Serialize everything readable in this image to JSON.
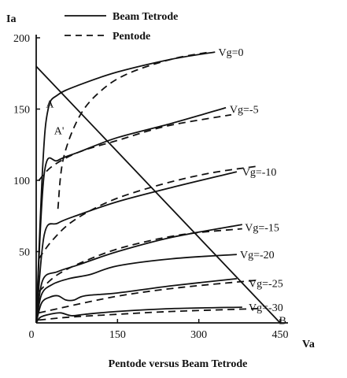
{
  "chart_data": {
    "type": "line",
    "title": "",
    "caption": "Pentode versus Beam Tetrode",
    "xlabel": "Va",
    "ylabel": "Ia",
    "xlim": [
      0,
      450
    ],
    "ylim": [
      0,
      200
    ],
    "x_ticks": [
      "0",
      "150",
      "300",
      "450"
    ],
    "y_ticks": [
      "50",
      "100",
      "150",
      "200"
    ],
    "grid": false,
    "legend": {
      "placement": "top",
      "entries": [
        {
          "label": "Beam Tetrode",
          "style": "solid"
        },
        {
          "label": "Pentode",
          "style": "dashed"
        }
      ]
    },
    "series": [
      {
        "group": "Beam Tetrode",
        "vg": "Vg=0",
        "x": [
          0,
          12,
          22,
          40,
          80,
          150,
          250,
          330
        ],
        "y": [
          0,
          110,
          150,
          160,
          167,
          176,
          185,
          190
        ]
      },
      {
        "group": "Beam Tetrode",
        "vg": "Vg=-5",
        "x": [
          0,
          15,
          40,
          80,
          150,
          250,
          350
        ],
        "y": [
          0,
          105,
          114,
          120,
          130,
          140,
          151
        ]
      },
      {
        "group": "Beam Tetrode",
        "vg": "Vg=-10",
        "x": [
          0,
          15,
          40,
          80,
          150,
          250,
          370
        ],
        "y": [
          0,
          62,
          70,
          76,
          85,
          95,
          106
        ]
      },
      {
        "group": "Beam Tetrode",
        "vg": "Vg=-15",
        "x": [
          0,
          12,
          40,
          80,
          150,
          250,
          380
        ],
        "y": [
          0,
          30,
          36,
          41,
          50,
          60,
          69
        ]
      },
      {
        "group": "Beam Tetrode",
        "vg": "Vg=-20",
        "x": [
          0,
          10,
          30,
          60,
          100,
          150,
          250,
          370
        ],
        "y": [
          0,
          20,
          27,
          31,
          34,
          40,
          45,
          48
        ]
      },
      {
        "group": "Beam Tetrode",
        "vg": "Vg=-25",
        "x": [
          0,
          10,
          25,
          40,
          55,
          70,
          90,
          150,
          250,
          370
        ],
        "y": [
          0,
          14,
          18,
          19,
          16,
          16,
          19,
          21,
          26,
          31
        ]
      },
      {
        "group": "Beam Tetrode",
        "vg": "Vg=-30",
        "x": [
          0,
          8,
          25,
          45,
          65,
          90,
          150,
          250,
          380
        ],
        "y": [
          0,
          4,
          6,
          7,
          5,
          6,
          8,
          10,
          11
        ]
      },
      {
        "group": "Pentode",
        "vg": "Vg=0",
        "x": [
          40,
          50,
          80,
          120,
          170,
          250,
          320
        ],
        "y": [
          80,
          115,
          145,
          163,
          175,
          185,
          190
        ]
      },
      {
        "group": "Pentode",
        "vg": "Vg=-5",
        "x": [
          5,
          30,
          80,
          150,
          240,
          360
        ],
        "y": [
          100,
          110,
          120,
          128,
          138,
          146
        ]
      },
      {
        "group": "Pentode",
        "vg": "Vg=-10",
        "x": [
          5,
          30,
          70,
          140,
          230,
          320,
          410
        ],
        "y": [
          45,
          58,
          72,
          86,
          97,
          105,
          110
        ]
      },
      {
        "group": "Pentode",
        "vg": "Vg=-15",
        "x": [
          5,
          40,
          100,
          170,
          270,
          380
        ],
        "y": [
          22,
          34,
          45,
          54,
          62,
          66
        ]
      },
      {
        "group": "Pentode",
        "vg": "Vg=-25",
        "x": [
          5,
          40,
          100,
          170,
          270,
          410
        ],
        "y": [
          7,
          10,
          15,
          20,
          25,
          30
        ]
      },
      {
        "group": "Pentode",
        "vg": "Vg=-30",
        "x": [
          5,
          60,
          150,
          250,
          410
        ],
        "y": [
          2,
          4,
          6,
          8,
          10
        ]
      }
    ],
    "load_line": {
      "x": [
        0,
        450
      ],
      "y": [
        180,
        0
      ]
    },
    "annotations": [
      {
        "text": "Vg=0",
        "x": 336,
        "y": 190
      },
      {
        "text": "Vg=-5",
        "x": 357,
        "y": 150
      },
      {
        "text": "Vg=-10",
        "x": 380,
        "y": 106
      },
      {
        "text": "Vg=-15",
        "x": 385,
        "y": 67
      },
      {
        "text": "Vg=-20",
        "x": 376,
        "y": 48
      },
      {
        "text": "Vg=-25",
        "x": 392,
        "y": 28
      },
      {
        "text": "Vg=-30",
        "x": 392,
        "y": 11
      },
      {
        "text": "A",
        "x": 18,
        "y": 154
      },
      {
        "text": "A'",
        "x": 33,
        "y": 135
      },
      {
        "text": "B",
        "x": 448,
        "y": 2
      }
    ]
  }
}
